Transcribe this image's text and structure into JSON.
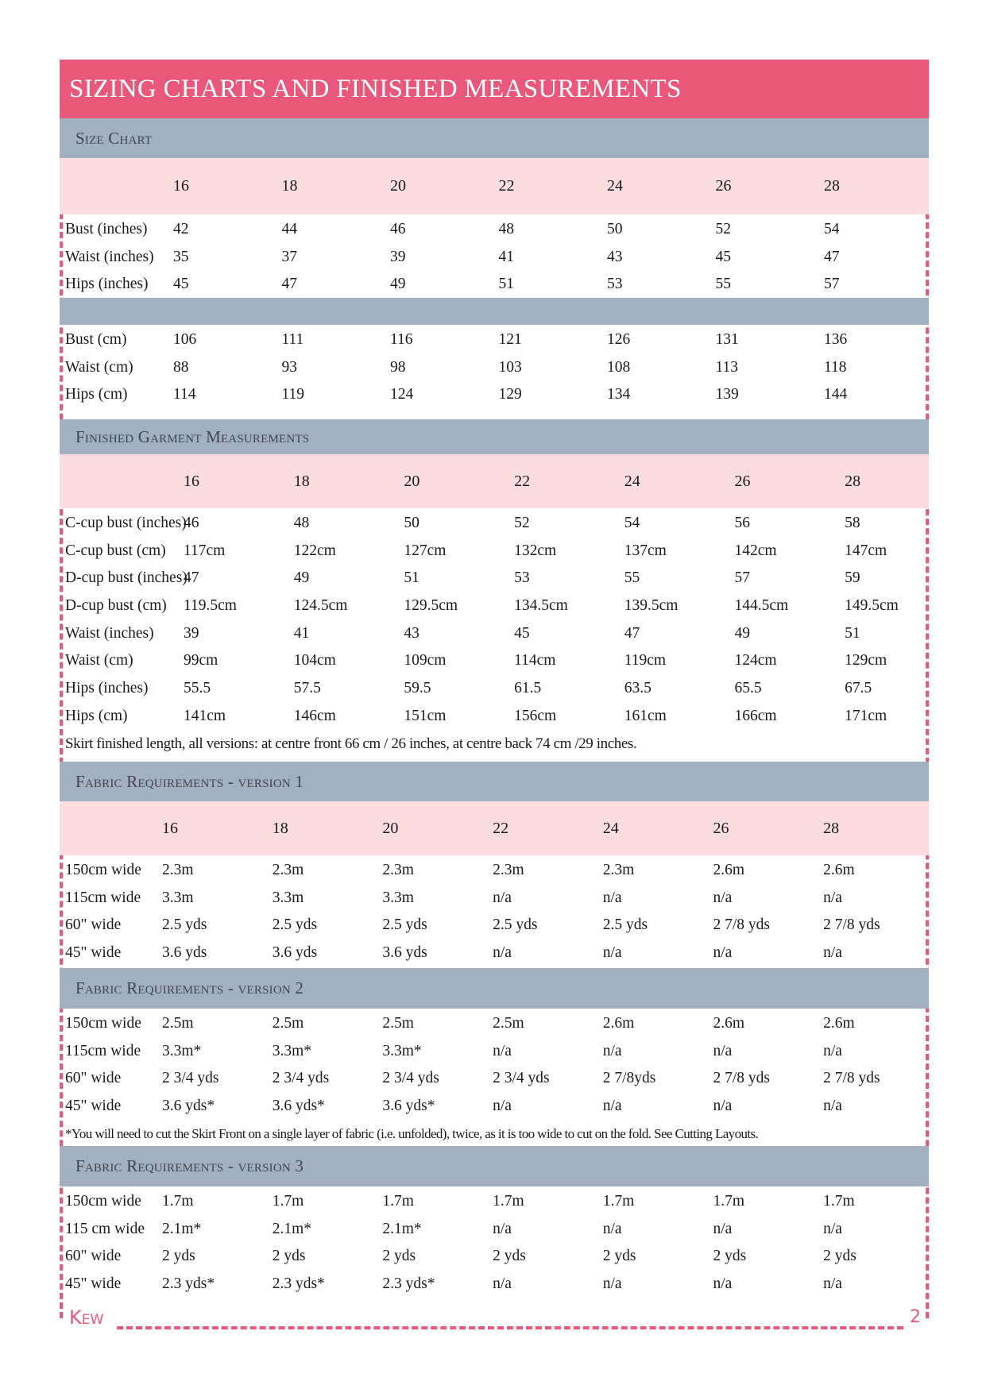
{
  "title": "SIZING CHARTS AND FINISHED MEASUREMENTS",
  "colors": {
    "accent": "#e9587a",
    "section": "#a3b0bf",
    "header_row": "#fbdde1"
  },
  "sizes": [
    "16",
    "18",
    "20",
    "22",
    "24",
    "26",
    "28"
  ],
  "size_chart": {
    "heading": "Size Chart",
    "inches": [
      {
        "label": "Bust (inches)",
        "values": [
          "42",
          "44",
          "46",
          "48",
          "50",
          "52",
          "54"
        ]
      },
      {
        "label": "Waist (inches)",
        "values": [
          "35",
          "37",
          "39",
          "41",
          "43",
          "45",
          "47"
        ]
      },
      {
        "label": "Hips (inches)",
        "values": [
          "45",
          "47",
          "49",
          "51",
          "53",
          "55",
          "57"
        ]
      }
    ],
    "cm": [
      {
        "label": "Bust (cm)",
        "values": [
          "106",
          "111",
          "116",
          "121",
          "126",
          "131",
          "136"
        ]
      },
      {
        "label": "Waist (cm)",
        "values": [
          "88",
          "93",
          "98",
          "103",
          "108",
          "113",
          "118"
        ]
      },
      {
        "label": "Hips (cm)",
        "values": [
          "114",
          "119",
          "124",
          "129",
          "134",
          "139",
          "144"
        ]
      }
    ]
  },
  "finished": {
    "heading": "Finished Garment Measurements",
    "rows": [
      {
        "label": "C-cup bust (inches)",
        "values": [
          "46",
          "48",
          "50",
          "52",
          "54",
          "56",
          "58"
        ]
      },
      {
        "label": "C-cup bust (cm)",
        "values": [
          "117cm",
          "122cm",
          "127cm",
          "132cm",
          "137cm",
          "142cm",
          "147cm"
        ]
      },
      {
        "label": "D-cup bust (inches)",
        "values": [
          "47",
          "49",
          "51",
          "53",
          "55",
          "57",
          "59"
        ]
      },
      {
        "label": "D-cup bust (cm)",
        "values": [
          "119.5cm",
          "124.5cm",
          "129.5cm",
          "134.5cm",
          "139.5cm",
          "144.5cm",
          "149.5cm"
        ]
      },
      {
        "label": "Waist (inches)",
        "values": [
          "39",
          "41",
          "43",
          "45",
          "47",
          "49",
          "51"
        ]
      },
      {
        "label": "Waist (cm)",
        "values": [
          "99cm",
          "104cm",
          "109cm",
          "114cm",
          "119cm",
          "124cm",
          "129cm"
        ]
      },
      {
        "label": "Hips (inches)",
        "values": [
          "55.5",
          "57.5",
          "59.5",
          "61.5",
          "63.5",
          "65.5",
          "67.5"
        ]
      },
      {
        "label": "Hips (cm)",
        "values": [
          "141cm",
          "146cm",
          "151cm",
          "156cm",
          "161cm",
          "166cm",
          "171cm"
        ]
      }
    ],
    "note": "Skirt finished length, all versions: at centre front 66 cm / 26 inches, at centre back 74 cm /29 inches."
  },
  "fabric_v1": {
    "heading": "Fabric Requirements - version 1",
    "rows": [
      {
        "label": "150cm wide",
        "values": [
          "2.3m",
          "2.3m",
          "2.3m",
          "2.3m",
          "2.3m",
          "2.6m",
          "2.6m"
        ]
      },
      {
        "label": "115cm wide",
        "values": [
          "3.3m",
          "3.3m",
          "3.3m",
          "n/a",
          "n/a",
          "n/a",
          "n/a"
        ]
      },
      {
        "label": "60\" wide",
        "values": [
          "2.5 yds",
          "2.5 yds",
          "2.5 yds",
          "2.5 yds",
          "2.5 yds",
          "2 7/8 yds",
          "2 7/8 yds"
        ]
      },
      {
        "label": "45\" wide",
        "values": [
          "3.6 yds",
          "3.6 yds",
          "3.6 yds",
          "n/a",
          "n/a",
          "n/a",
          "n/a"
        ]
      }
    ]
  },
  "fabric_v2": {
    "heading": "Fabric Requirements - version 2",
    "rows": [
      {
        "label": "150cm wide",
        "values": [
          "2.5m",
          "2.5m",
          "2.5m",
          "2.5m",
          "2.6m",
          "2.6m",
          "2.6m"
        ]
      },
      {
        "label": "115cm wide",
        "values": [
          "3.3m*",
          "3.3m*",
          "3.3m*",
          "n/a",
          "n/a",
          "n/a",
          "n/a"
        ]
      },
      {
        "label": "60\" wide",
        "values": [
          "2 3/4 yds",
          "2 3/4 yds",
          "2 3/4 yds",
          "2 3/4 yds",
          "2 7/8yds",
          "2 7/8 yds",
          "2 7/8 yds"
        ]
      },
      {
        "label": "45\" wide",
        "values": [
          "3.6 yds*",
          "3.6 yds*",
          "3.6 yds*",
          "n/a",
          "n/a",
          "n/a",
          "n/a"
        ]
      }
    ],
    "note": "*You will need to cut the Skirt Front on a single layer of fabric (i.e. unfolded), twice, as it is too wide to cut on the fold. See Cutting Layouts."
  },
  "fabric_v3": {
    "heading": "Fabric Requirements - version 3",
    "rows": [
      {
        "label": "150cm wide",
        "values": [
          "1.7m",
          "1.7m",
          "1.7m",
          "1.7m",
          "1.7m",
          "1.7m",
          "1.7m"
        ]
      },
      {
        "label": "115 cm wide",
        "values": [
          "2.1m*",
          "2.1m*",
          "2.1m*",
          "n/a",
          "n/a",
          "n/a",
          "n/a"
        ]
      },
      {
        "label": "60\" wide",
        "values": [
          "2 yds",
          "2 yds",
          "2 yds",
          "2 yds",
          "2 yds",
          "2 yds",
          "2 yds"
        ]
      },
      {
        "label": "45\" wide",
        "values": [
          "2.3 yds*",
          "2.3 yds*",
          "2.3 yds*",
          "n/a",
          "n/a",
          "n/a",
          "n/a"
        ]
      }
    ]
  },
  "footer": {
    "brand": "Kew",
    "page_number": "2"
  }
}
